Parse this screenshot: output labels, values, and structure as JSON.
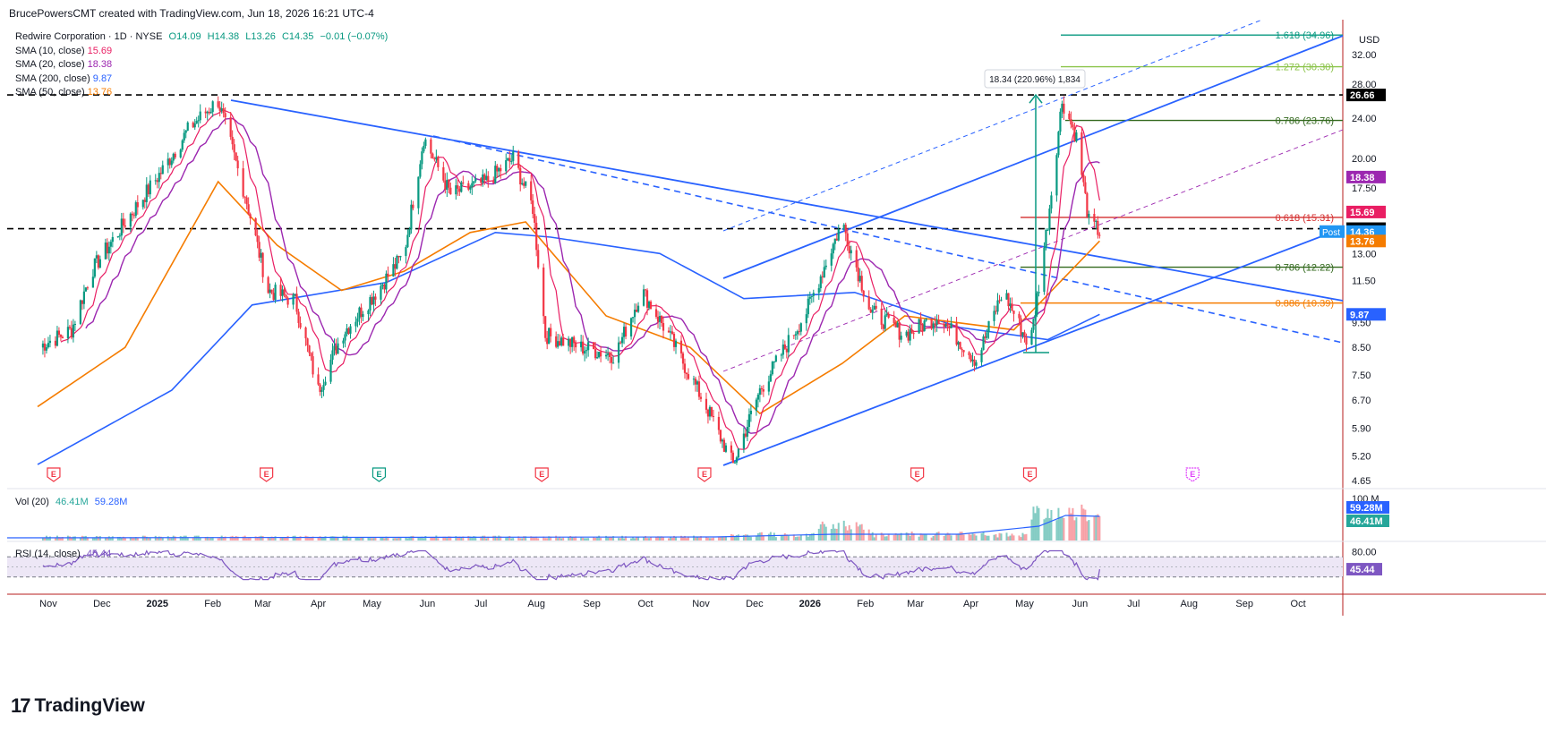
{
  "header": {
    "attribution": "BrucePowersCMT created with TradingView.com, Jun 18, 2026 16:21 UTC-4",
    "symbol_line": "Redwire Corporation · 1D · NYSE",
    "ohlc": {
      "o": "O14.09",
      "h": "H14.38",
      "l": "L13.26",
      "c": "C14.35",
      "chg": "−0.01 (−0.07%)"
    }
  },
  "legend": [
    {
      "label": "SMA (10, close)",
      "value": "15.69",
      "color": "#e91e63"
    },
    {
      "label": "SMA (20, close)",
      "value": "18.38",
      "color": "#9c27b0"
    },
    {
      "label": "SMA (200, close)",
      "value": "9.87",
      "color": "#2962ff"
    },
    {
      "label": "SMA (50, close)",
      "value": "13.76",
      "color": "#f57c00"
    }
  ],
  "currency": "USD",
  "logo_text": "TradingView",
  "volume_label": {
    "title": "Vol (20)",
    "v1": "46.41M",
    "v2": "59.28M"
  },
  "rsi_label": {
    "title": "RSI (14, close)",
    "value": "45.44"
  },
  "measure_label": "18.34 (220.96%) 1,834",
  "post_label": "Post",
  "chart_data": {
    "type": "candlestick",
    "title": "Redwire Corporation · 1D · NYSE",
    "y_scale": "log",
    "ylim": [
      4.65,
      36
    ],
    "y_ticks": [
      "32.00",
      "28.00",
      "24.00",
      "20.00",
      "17.50",
      "13.00",
      "11.50",
      "9.50",
      "8.50",
      "7.50",
      "6.70",
      "5.90",
      "5.20",
      "4.65"
    ],
    "x_ticks": [
      "Nov",
      "Dec",
      "2025",
      "Feb",
      "Mar",
      "Apr",
      "May",
      "Jun",
      "Jul",
      "Aug",
      "Sep",
      "Oct",
      "Nov",
      "Dec",
      "2026",
      "Feb",
      "Mar",
      "Apr",
      "May",
      "Jun",
      "Jul",
      "Aug",
      "Sep",
      "Oct"
    ],
    "price_path": [
      [
        "2024-11-01",
        8.5
      ],
      [
        "2024-11-20",
        9.2
      ],
      [
        "2024-12-01",
        12.0
      ],
      [
        "2024-12-20",
        15.0
      ],
      [
        "2025-01-10",
        19.0
      ],
      [
        "2025-01-25",
        23.0
      ],
      [
        "2025-02-10",
        26.0
      ],
      [
        "2025-02-25",
        17.0
      ],
      [
        "2025-03-10",
        11.0
      ],
      [
        "2025-03-25",
        10.5
      ],
      [
        "2025-04-07",
        7.0
      ],
      [
        "2025-04-20",
        9.0
      ],
      [
        "2025-05-10",
        11.0
      ],
      [
        "2025-05-25",
        13.0
      ],
      [
        "2025-06-05",
        22.0
      ],
      [
        "2025-06-20",
        17.0
      ],
      [
        "2025-07-10",
        18.0
      ],
      [
        "2025-07-25",
        20.0
      ],
      [
        "2025-08-05",
        16.0
      ],
      [
        "2025-08-12",
        9.0
      ],
      [
        "2025-09-01",
        8.5
      ],
      [
        "2025-09-20",
        8.2
      ],
      [
        "2025-10-05",
        11.0
      ],
      [
        "2025-10-20",
        9.0
      ],
      [
        "2025-11-10",
        6.5
      ],
      [
        "2025-11-25",
        5.0
      ],
      [
        "2025-12-10",
        7.0
      ],
      [
        "2026-01-05",
        10.0
      ],
      [
        "2026-01-25",
        15.0
      ],
      [
        "2026-02-10",
        10.0
      ],
      [
        "2026-03-01",
        9.0
      ],
      [
        "2026-03-20",
        9.8
      ],
      [
        "2026-04-10",
        8.0
      ],
      [
        "2026-04-25",
        11.0
      ],
      [
        "2026-05-10",
        8.5
      ],
      [
        "2026-05-20",
        15.0
      ],
      [
        "2026-05-28",
        26.0
      ],
      [
        "2026-06-05",
        22.0
      ],
      [
        "2026-06-12",
        15.0
      ],
      [
        "2026-06-18",
        14.35
      ]
    ],
    "series": [
      {
        "name": "SMA (10, close)",
        "last": 15.69,
        "color": "#e91e63"
      },
      {
        "name": "SMA (20, close)",
        "last": 18.38,
        "color": "#9c27b0"
      },
      {
        "name": "SMA (200, close)",
        "last": 9.87,
        "color": "#2962ff",
        "path": [
          [
            "2024-11-01",
            5.0
          ],
          [
            "2025-01-15",
            7.0
          ],
          [
            "2025-03-01",
            10.3
          ],
          [
            "2025-05-15",
            11.4
          ],
          [
            "2025-07-15",
            14.3
          ],
          [
            "2025-08-15",
            14.0
          ],
          [
            "2025-10-15",
            13.0
          ],
          [
            "2025-12-01",
            10.6
          ],
          [
            "2026-02-01",
            10.9
          ],
          [
            "2026-04-01",
            9.3
          ],
          [
            "2026-05-20",
            8.8
          ],
          [
            "2026-06-18",
            9.87
          ]
        ]
      },
      {
        "name": "SMA (50, close)",
        "last": 13.76,
        "color": "#f57c00",
        "path": [
          [
            "2024-11-01",
            6.5
          ],
          [
            "2024-12-20",
            8.5
          ],
          [
            "2025-02-10",
            18.0
          ],
          [
            "2025-03-15",
            13.5
          ],
          [
            "2025-04-20",
            11.0
          ],
          [
            "2025-05-25",
            12.0
          ],
          [
            "2025-07-01",
            14.3
          ],
          [
            "2025-08-01",
            15.0
          ],
          [
            "2025-09-15",
            9.8
          ],
          [
            "2025-11-01",
            8.5
          ],
          [
            "2025-12-10",
            6.3
          ],
          [
            "2026-01-25",
            7.9
          ],
          [
            "2026-03-01",
            9.8
          ],
          [
            "2026-05-01",
            9.2
          ],
          [
            "2026-06-18",
            13.76
          ]
        ]
      }
    ],
    "horizontal_levels": [
      {
        "label": "1.618 (34.96)",
        "value": 34.96,
        "color": "#089981"
      },
      {
        "label": "1.272 (30.30)",
        "value": 30.3,
        "color": "#8bc34a"
      },
      {
        "label": "0.786 (23.76)",
        "value": 23.76,
        "color": "#33691e"
      },
      {
        "label": "0.618 (15.31)",
        "value": 15.31,
        "color": "#d32f2f"
      },
      {
        "label": "0.786 (12.22)",
        "value": 12.22,
        "color": "#33691e"
      },
      {
        "label": "0.886 (10.39)",
        "value": 10.39,
        "color": "#f57c00"
      }
    ],
    "dashed_levels": [
      26.66,
      14.55
    ],
    "price_badges": [
      {
        "text": "26.66",
        "value": 26.66,
        "bg": "#000000",
        "fg": "#ffffff"
      },
      {
        "text": "18.38",
        "value": 18.38,
        "bg": "#9c27b0",
        "fg": "#ffffff"
      },
      {
        "text": "15.69",
        "value": 15.69,
        "bg": "#e91e63",
        "fg": "#ffffff"
      },
      {
        "text": "14.55",
        "value": 14.55,
        "bg": "#000000",
        "fg": "#ffffff"
      },
      {
        "text": "14.36",
        "value": 14.36,
        "bg": "#2196f3",
        "fg": "#ffffff"
      },
      {
        "text": "13.76",
        "value": 13.76,
        "bg": "#f57c00",
        "fg": "#ffffff"
      },
      {
        "text": "9.87",
        "value": 9.87,
        "bg": "#2962ff",
        "fg": "#ffffff"
      }
    ],
    "earnings_markers": [
      {
        "date": "2024-11-06",
        "kind": "past"
      },
      {
        "date": "2025-03-05",
        "kind": "past"
      },
      {
        "date": "2025-05-07",
        "kind": "positive"
      },
      {
        "date": "2025-08-06",
        "kind": "past"
      },
      {
        "date": "2025-11-05",
        "kind": "past"
      },
      {
        "date": "2026-03-04",
        "kind": "past"
      },
      {
        "date": "2026-05-06",
        "kind": "past"
      },
      {
        "date": "2026-08-05",
        "kind": "future"
      }
    ],
    "volume": {
      "y_ticks": [
        "100 M"
      ],
      "badges": [
        {
          "text": "59.28M",
          "bg": "#2962ff"
        },
        {
          "text": "46.41M",
          "bg": "#26a69a"
        }
      ]
    },
    "rsi": {
      "y_ticks": [
        "80.00"
      ],
      "upper": 70,
      "lower": 30,
      "last": 45.44,
      "badge": {
        "text": "45.44",
        "bg": "#7e57c2"
      }
    }
  }
}
